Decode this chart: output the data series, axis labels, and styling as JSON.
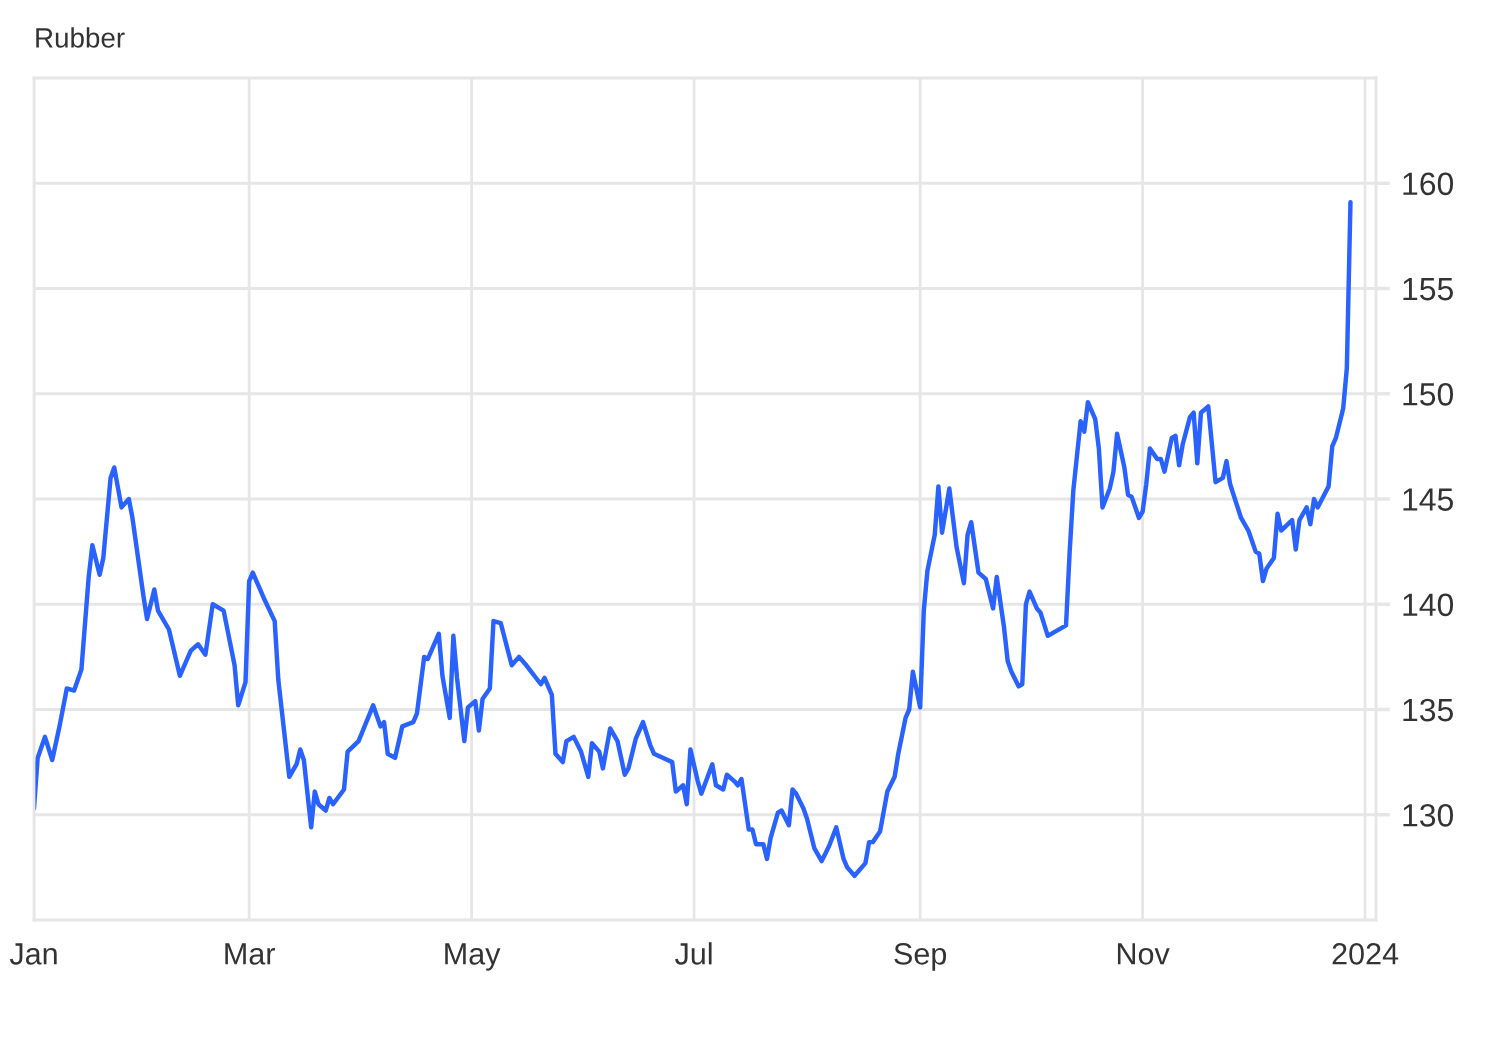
{
  "chart_data": {
    "type": "line",
    "title": "Rubber",
    "x": [
      "2023-01-01",
      "2023-01-02",
      "2023-01-04",
      "2023-01-06",
      "2023-01-08",
      "2023-01-10",
      "2023-01-12",
      "2023-01-14",
      "2023-01-16",
      "2023-01-17",
      "2023-01-19",
      "2023-01-20",
      "2023-01-22",
      "2023-01-23",
      "2023-01-25",
      "2023-01-27",
      "2023-01-28",
      "2023-01-31",
      "2023-02-01",
      "2023-02-03",
      "2023-02-04",
      "2023-02-07",
      "2023-02-10",
      "2023-02-13",
      "2023-02-15",
      "2023-02-17",
      "2023-02-19",
      "2023-02-22",
      "2023-02-25",
      "2023-02-26",
      "2023-02-28",
      "2023-03-01",
      "2023-03-02",
      "2023-03-05",
      "2023-03-08",
      "2023-03-09",
      "2023-03-12",
      "2023-03-14",
      "2023-03-15",
      "2023-03-16",
      "2023-03-18",
      "2023-03-19",
      "2023-03-20",
      "2023-03-22",
      "2023-03-23",
      "2023-03-24",
      "2023-03-27",
      "2023-03-28",
      "2023-03-31",
      "2023-04-04",
      "2023-04-06",
      "2023-04-07",
      "2023-04-08",
      "2023-04-10",
      "2023-04-12",
      "2023-04-15",
      "2023-04-16",
      "2023-04-18",
      "2023-04-19",
      "2023-04-22",
      "2023-04-23",
      "2023-04-25",
      "2023-04-26",
      "2023-04-27",
      "2023-04-29",
      "2023-04-30",
      "2023-05-02",
      "2023-05-03",
      "2023-05-04",
      "2023-05-06",
      "2023-05-07",
      "2023-05-09",
      "2023-05-12",
      "2023-05-14",
      "2023-05-16",
      "2023-05-20",
      "2023-05-21",
      "2023-05-23",
      "2023-05-24",
      "2023-05-26",
      "2023-05-27",
      "2023-05-29",
      "2023-05-31",
      "2023-06-02",
      "2023-06-03",
      "2023-06-05",
      "2023-06-06",
      "2023-06-08",
      "2023-06-10",
      "2023-06-12",
      "2023-06-13",
      "2023-06-15",
      "2023-06-17",
      "2023-06-19",
      "2023-06-20",
      "2023-06-25",
      "2023-06-26",
      "2023-06-28",
      "2023-06-29",
      "2023-06-30",
      "2023-07-02",
      "2023-07-03",
      "2023-07-06",
      "2023-07-07",
      "2023-07-09",
      "2023-07-10",
      "2023-07-12",
      "2023-07-13",
      "2023-07-14",
      "2023-07-16",
      "2023-07-17",
      "2023-07-18",
      "2023-07-20",
      "2023-07-21",
      "2023-07-22",
      "2023-07-24",
      "2023-07-25",
      "2023-07-27",
      "2023-07-28",
      "2023-07-29",
      "2023-07-31",
      "2023-08-01",
      "2023-08-03",
      "2023-08-05",
      "2023-08-07",
      "2023-08-09",
      "2023-08-11",
      "2023-08-12",
      "2023-08-14",
      "2023-08-17",
      "2023-08-18",
      "2023-08-19",
      "2023-08-21",
      "2023-08-23",
      "2023-08-25",
      "2023-08-26",
      "2023-08-28",
      "2023-08-29",
      "2023-08-30",
      "2023-09-01",
      "2023-09-02",
      "2023-09-03",
      "2023-09-05",
      "2023-09-06",
      "2023-09-07",
      "2023-09-09",
      "2023-09-10",
      "2023-09-11",
      "2023-09-13",
      "2023-09-14",
      "2023-09-15",
      "2023-09-17",
      "2023-09-19",
      "2023-09-21",
      "2023-09-22",
      "2023-09-24",
      "2023-09-25",
      "2023-09-26",
      "2023-09-28",
      "2023-09-29",
      "2023-09-30",
      "2023-10-01",
      "2023-10-03",
      "2023-10-04",
      "2023-10-06",
      "2023-10-11",
      "2023-10-12",
      "2023-10-13",
      "2023-10-15",
      "2023-10-16",
      "2023-10-17",
      "2023-10-19",
      "2023-10-20",
      "2023-10-21",
      "2023-10-23",
      "2023-10-24",
      "2023-10-25",
      "2023-10-27",
      "2023-10-28",
      "2023-10-29",
      "2023-10-31",
      "2023-11-01",
      "2023-11-02",
      "2023-11-03",
      "2023-11-05",
      "2023-11-06",
      "2023-11-07",
      "2023-11-09",
      "2023-11-10",
      "2023-11-11",
      "2023-11-12",
      "2023-11-14",
      "2023-11-15",
      "2023-11-16",
      "2023-11-17",
      "2023-11-19",
      "2023-11-20",
      "2023-11-21",
      "2023-11-23",
      "2023-11-24",
      "2023-11-25",
      "2023-11-28",
      "2023-11-30",
      "2023-12-02",
      "2023-12-03",
      "2023-12-04",
      "2023-12-05",
      "2023-12-07",
      "2023-12-08",
      "2023-12-09",
      "2023-12-12",
      "2023-12-13",
      "2023-12-14",
      "2023-12-16",
      "2023-12-17",
      "2023-12-18",
      "2023-12-19",
      "2023-12-22",
      "2023-12-23",
      "2023-12-24",
      "2023-12-26",
      "2023-12-27",
      "2023-12-28"
    ],
    "series": [
      {
        "color": "#2962ff",
        "values": [
          130.3,
          132.7,
          133.7,
          132.6,
          134.2,
          136.0,
          135.9,
          136.9,
          141.3,
          142.8,
          141.4,
          142.2,
          146.0,
          146.5,
          144.6,
          145.0,
          144.1,
          140.4,
          139.3,
          140.7,
          139.7,
          138.8,
          136.6,
          137.8,
          138.1,
          137.6,
          140.0,
          139.7,
          137.1,
          135.2,
          136.3,
          141.1,
          141.5,
          140.3,
          139.2,
          136.4,
          131.8,
          132.4,
          133.1,
          132.6,
          129.4,
          131.1,
          130.5,
          130.2,
          130.8,
          130.5,
          131.2,
          133.0,
          133.5,
          135.2,
          134.2,
          134.4,
          132.9,
          132.7,
          134.2,
          134.4,
          134.8,
          137.5,
          137.4,
          138.6,
          136.6,
          134.6,
          138.5,
          136.5,
          133.5,
          135.1,
          135.4,
          134.0,
          135.5,
          136.0,
          139.2,
          139.1,
          137.1,
          137.5,
          137.1,
          136.2,
          136.5,
          135.7,
          132.9,
          132.5,
          133.5,
          133.7,
          133.0,
          131.8,
          133.4,
          133.0,
          132.2,
          134.1,
          133.5,
          131.9,
          132.2,
          133.6,
          134.4,
          133.3,
          132.9,
          132.5,
          131.1,
          131.4,
          130.5,
          133.1,
          131.6,
          131.0,
          132.4,
          131.4,
          131.2,
          131.9,
          131.6,
          131.4,
          131.7,
          129.3,
          129.3,
          128.6,
          128.6,
          127.9,
          128.9,
          130.1,
          130.2,
          129.5,
          131.2,
          131.0,
          130.3,
          129.8,
          128.4,
          127.8,
          128.5,
          129.4,
          127.9,
          127.5,
          127.1,
          127.7,
          128.7,
          128.7,
          129.2,
          131.1,
          131.8,
          132.9,
          134.6,
          135.0,
          136.8,
          135.1,
          139.7,
          141.6,
          143.3,
          145.6,
          143.4,
          145.5,
          144.1,
          142.7,
          141.0,
          143.3,
          143.9,
          141.5,
          141.2,
          139.8,
          141.3,
          138.9,
          137.3,
          136.8,
          136.1,
          136.2,
          140.0,
          140.6,
          139.8,
          139.6,
          138.5,
          139.0,
          142.5,
          145.4,
          148.7,
          148.2,
          149.6,
          148.8,
          147.4,
          144.6,
          145.5,
          146.3,
          148.1,
          146.5,
          145.2,
          145.1,
          144.1,
          144.4,
          145.7,
          147.4,
          146.9,
          146.9,
          146.3,
          147.9,
          148.0,
          146.6,
          147.6,
          148.9,
          149.1,
          146.7,
          149.1,
          149.4,
          147.6,
          145.8,
          146.0,
          146.8,
          145.7,
          144.1,
          143.5,
          142.5,
          142.4,
          141.1,
          141.7,
          142.2,
          144.3,
          143.5,
          144.0,
          142.6,
          144.0,
          144.6,
          143.8,
          145.0,
          144.6,
          145.6,
          147.5,
          147.9,
          149.3,
          151.2,
          159.1
        ]
      }
    ],
    "xlim": [
      "2023-01-01",
      "2024-01-04"
    ],
    "xticks": [
      {
        "value": "2023-01-01",
        "label": "Jan"
      },
      {
        "value": "2023-03-01",
        "label": "Mar"
      },
      {
        "value": "2023-05-01",
        "label": "May"
      },
      {
        "value": "2023-07-01",
        "label": "Jul"
      },
      {
        "value": "2023-09-01",
        "label": "Sep"
      },
      {
        "value": "2023-11-01",
        "label": "Nov"
      },
      {
        "value": "2024-01-01",
        "label": "2024"
      }
    ],
    "ylim": [
      125,
      165
    ],
    "yticks": [
      130,
      135,
      140,
      145,
      150,
      155,
      160
    ],
    "grid": true
  }
}
